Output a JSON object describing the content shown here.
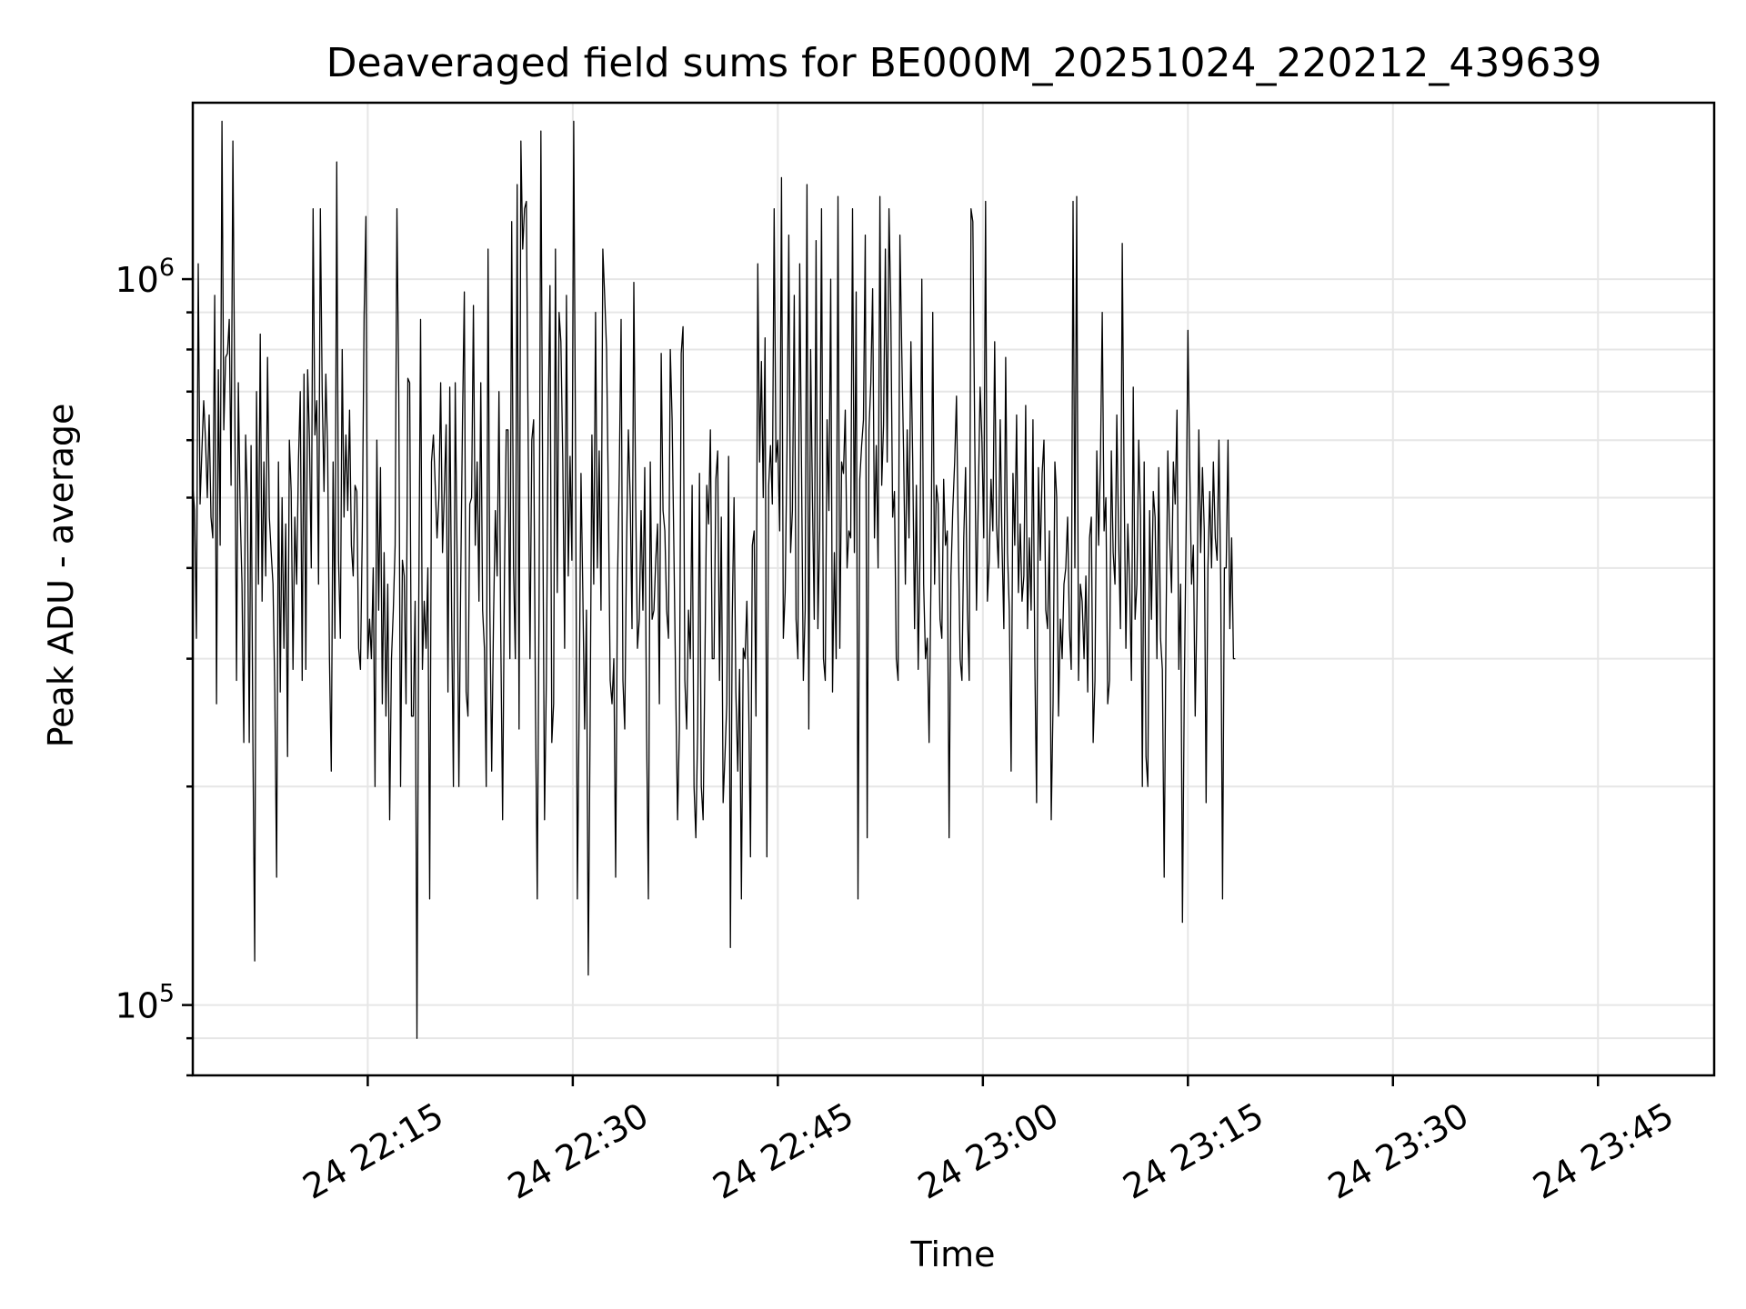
{
  "chart_data": {
    "type": "line",
    "title": "Deaveraged field sums for BE000M_20251024_220212_439639",
    "xlabel": "Time",
    "ylabel": "Peak ADU - average",
    "yscale": "log",
    "grid": true,
    "line_color": "#000000",
    "x_range": [
      "2025-10-24 22:02:12",
      "2025-10-24 23:53:30"
    ],
    "ylim": [
      80000,
      1750000
    ],
    "x_ticks": [
      {
        "time": "2025-10-24 22:15",
        "label": "24 22:15"
      },
      {
        "time": "2025-10-24 22:30",
        "label": "24 22:30"
      },
      {
        "time": "2025-10-24 22:45",
        "label": "24 22:45"
      },
      {
        "time": "2025-10-24 23:00",
        "label": "24 23:00"
      },
      {
        "time": "2025-10-24 23:15",
        "label": "24 23:15"
      },
      {
        "time": "2025-10-24 23:30",
        "label": "24 23:30"
      },
      {
        "time": "2025-10-24 23:45",
        "label": "24 23:45"
      }
    ],
    "y_ticks": [
      {
        "value": 100000,
        "base": "10",
        "exp": "5"
      },
      {
        "value": 1000000,
        "base": "10",
        "exp": "6"
      }
    ],
    "series": [
      {
        "interval_seconds": 8,
        "values": [
          520000,
          480000,
          320000,
          1050000,
          490000,
          580000,
          680000,
          600000,
          500000,
          650000,
          470000,
          440000,
          950000,
          260000,
          750000,
          430000,
          1650000,
          620000,
          780000,
          790000,
          880000,
          520000,
          1550000,
          700000,
          280000,
          720000,
          480000,
          380000,
          230000,
          610000,
          490000,
          230000,
          590000,
          230000,
          115000,
          700000,
          380000,
          840000,
          360000,
          560000,
          390000,
          780000,
          470000,
          420000,
          380000,
          270000,
          150000,
          560000,
          270000,
          500000,
          310000,
          460000,
          220000,
          600000,
          510000,
          290000,
          470000,
          380000,
          560000,
          700000,
          280000,
          740000,
          290000,
          750000,
          600000,
          400000,
          1250000,
          610000,
          680000,
          380000,
          1250000,
          700000,
          510000,
          740000,
          580000,
          300000,
          210000,
          560000,
          320000,
          1450000,
          410000,
          320000,
          800000,
          470000,
          610000,
          480000,
          660000,
          430000,
          390000,
          520000,
          510000,
          310000,
          290000,
          450000,
          890000,
          1220000,
          300000,
          340000,
          300000,
          400000,
          200000,
          600000,
          350000,
          550000,
          260000,
          420000,
          250000,
          380000,
          180000,
          300000,
          350000,
          430000,
          1250000,
          700000,
          200000,
          410000,
          390000,
          260000,
          730000,
          720000,
          250000,
          250000,
          360000,
          90000,
          360000,
          880000,
          290000,
          360000,
          310000,
          400000,
          140000,
          560000,
          610000,
          520000,
          440000,
          500000,
          720000,
          420000,
          510000,
          630000,
          270000,
          710000,
          350000,
          200000,
          720000,
          420000,
          200000,
          380000,
          640000,
          960000,
          270000,
          250000,
          490000,
          500000,
          920000,
          430000,
          560000,
          360000,
          720000,
          350000,
          310000,
          200000,
          1100000,
          350000,
          210000,
          340000,
          480000,
          390000,
          700000,
          320000,
          180000,
          390000,
          620000,
          620000,
          300000,
          1200000,
          400000,
          300000,
          1350000,
          240000,
          1550000,
          1100000,
          1250000,
          1280000,
          600000,
          300000,
          600000,
          640000,
          260000,
          140000,
          360000,
          1600000,
          510000,
          180000,
          280000,
          640000,
          980000,
          230000,
          260000,
          1100000,
          370000,
          900000,
          820000,
          560000,
          310000,
          950000,
          390000,
          570000,
          410000,
          1650000,
          570000,
          140000,
          260000,
          540000,
          370000,
          240000,
          350000,
          110000,
          240000,
          610000,
          380000,
          900000,
          400000,
          580000,
          350000,
          1100000,
          950000,
          800000,
          500000,
          280000,
          260000,
          300000,
          150000,
          380000,
          540000,
          880000,
          280000,
          240000,
          430000,
          620000,
          500000,
          330000,
          990000,
          500000,
          310000,
          340000,
          480000,
          350000,
          550000,
          240000,
          140000,
          560000,
          340000,
          350000,
          410000,
          460000,
          260000,
          790000,
          480000,
          450000,
          350000,
          320000,
          800000,
          640000,
          420000,
          270000,
          180000,
          240000,
          790000,
          860000,
          280000,
          240000,
          350000,
          300000,
          520000,
          200000,
          170000,
          240000,
          540000,
          200000,
          180000,
          300000,
          520000,
          460000,
          620000,
          300000,
          300000,
          530000,
          580000,
          280000,
          470000,
          190000,
          220000,
          260000,
          570000,
          120000,
          340000,
          500000,
          270000,
          210000,
          290000,
          140000,
          310000,
          300000,
          360000,
          260000,
          160000,
          430000,
          450000,
          250000,
          1050000,
          560000,
          770000,
          500000,
          830000,
          160000,
          520000,
          590000,
          490000,
          1250000,
          560000,
          600000,
          450000,
          1380000,
          320000,
          370000,
          580000,
          1150000,
          420000,
          480000,
          950000,
          340000,
          300000,
          1050000,
          550000,
          280000,
          350000,
          1350000,
          240000,
          800000,
          500000,
          340000,
          1130000,
          330000,
          450000,
          1250000,
          300000,
          280000,
          640000,
          480000,
          1000000,
          270000,
          420000,
          300000,
          1300000,
          310000,
          560000,
          540000,
          660000,
          400000,
          450000,
          440000,
          1250000,
          420000,
          960000,
          140000,
          530000,
          590000,
          640000,
          1150000,
          170000,
          620000,
          720000,
          970000,
          440000,
          590000,
          400000,
          1300000,
          520000,
          630000,
          1100000,
          560000,
          1250000,
          900000,
          470000,
          510000,
          300000,
          280000,
          1150000,
          800000,
          580000,
          380000,
          620000,
          440000,
          820000,
          560000,
          330000,
          520000,
          290000,
          420000,
          1000000,
          380000,
          300000,
          320000,
          230000,
          380000,
          900000,
          380000,
          520000,
          490000,
          340000,
          320000,
          530000,
          430000,
          450000,
          170000,
          390000,
          480000,
          560000,
          690000,
          440000,
          300000,
          280000,
          440000,
          550000,
          350000,
          280000,
          1250000,
          1200000,
          620000,
          350000,
          500000,
          710000,
          600000,
          440000,
          1280000,
          360000,
          410000,
          530000,
          450000,
          820000,
          460000,
          400000,
          640000,
          430000,
          330000,
          780000,
          420000,
          350000,
          210000,
          540000,
          430000,
          650000,
          370000,
          460000,
          360000,
          390000,
          670000,
          330000,
          440000,
          350000,
          640000,
          300000,
          190000,
          550000,
          410000,
          540000,
          600000,
          350000,
          330000,
          450000,
          180000,
          260000,
          560000,
          500000,
          250000,
          340000,
          300000,
          380000,
          400000,
          470000,
          330000,
          290000,
          1280000,
          400000,
          1300000,
          280000,
          380000,
          360000,
          300000,
          390000,
          270000,
          440000,
          470000,
          230000,
          280000,
          580000,
          430000,
          560000,
          900000,
          450000,
          500000,
          260000,
          280000,
          580000,
          420000,
          380000,
          650000,
          440000,
          330000,
          1120000,
          530000,
          310000,
          460000,
          380000,
          280000,
          710000,
          340000,
          380000,
          600000,
          470000,
          200000,
          560000,
          220000,
          200000,
          480000,
          340000,
          510000,
          470000,
          300000,
          550000,
          320000,
          290000,
          150000,
          330000,
          580000,
          440000,
          370000,
          560000,
          490000,
          660000,
          290000,
          380000,
          130000,
          270000,
          450000,
          850000,
          550000,
          380000,
          430000,
          250000,
          360000,
          620000,
          420000,
          550000,
          450000,
          190000,
          400000,
          510000,
          400000,
          560000,
          440000,
          410000,
          600000,
          380000,
          140000,
          400000,
          400000,
          600000,
          330000,
          440000,
          300000,
          300000
        ]
      }
    ]
  }
}
